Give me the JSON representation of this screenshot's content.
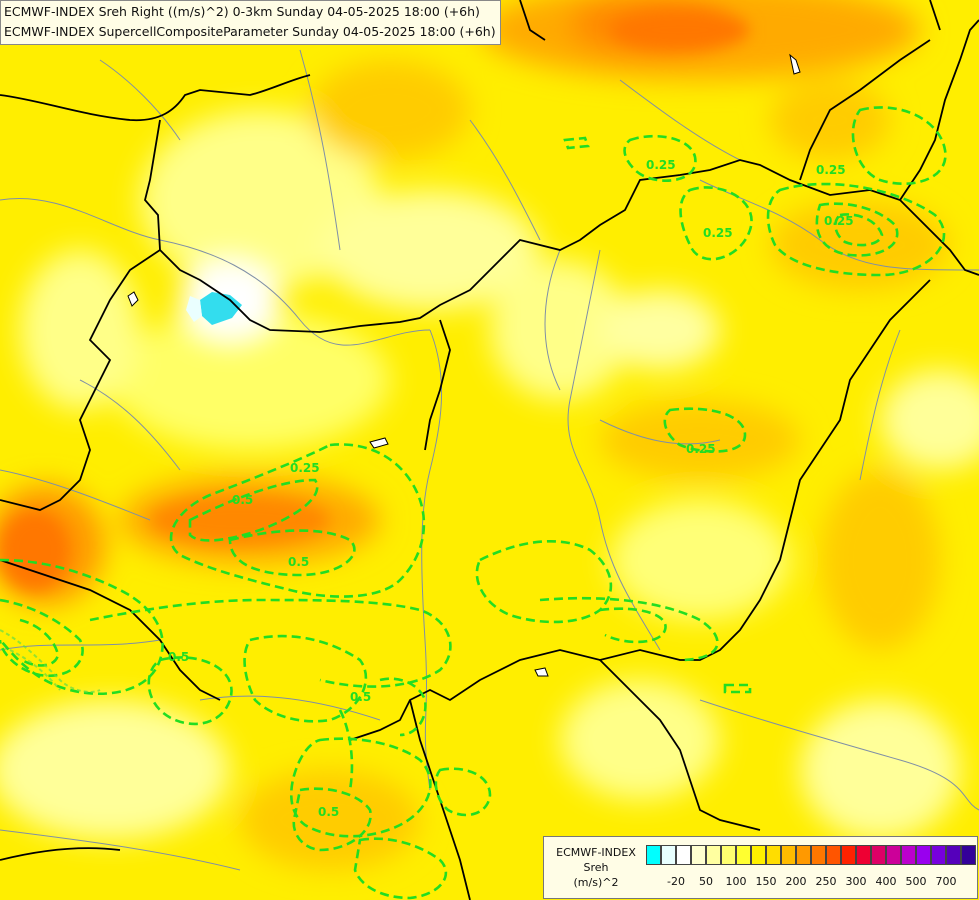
{
  "title": {
    "line1": "ECMWF-INDEX Sreh Right ((m/s)^2) 0-3km Sunday 04-05-2025 18:00 (+6h)",
    "line2": "ECMWF-INDEX SupercellCompositeParameter Sunday 04-05-2025 18:00 (+6h)"
  },
  "legend": {
    "line1": "ECMWF-INDEX",
    "line2": "Sreh",
    "line3": "(m/s)^2",
    "colors": [
      "#00ffff",
      "#e8ffff",
      "#ffffff",
      "#ffffd0",
      "#ffffa0",
      "#ffff70",
      "#ffff30",
      "#fff000",
      "#ffdd00",
      "#ffbb00",
      "#ff9900",
      "#ff7700",
      "#ff5500",
      "#ff2200",
      "#ee0033",
      "#dd0066",
      "#cc0099",
      "#bb00cc",
      "#9900ee",
      "#7700dd",
      "#5500bb",
      "#330099",
      "#110077"
    ],
    "ticks": [
      "-20",
      "50",
      "100",
      "150",
      "200",
      "250",
      "300",
      "400",
      "500",
      "700"
    ]
  },
  "contour_labels": [
    {
      "text": "0.25",
      "name": "contour-label-ne-1"
    },
    {
      "text": "0.25",
      "name": "contour-label-ne-2"
    },
    {
      "text": "0.25",
      "name": "contour-label-ne-3"
    },
    {
      "text": "0.25",
      "name": "contour-label-east"
    },
    {
      "text": "0.25",
      "name": "contour-label-central"
    },
    {
      "text": "0.5",
      "name": "contour-label-west-1"
    },
    {
      "text": "0.5",
      "name": "contour-label-west-2"
    },
    {
      "text": "0.5",
      "name": "contour-label-south-1"
    },
    {
      "text": "0.25",
      "name": "contour-label-south-2"
    },
    {
      "text": "0.5",
      "name": "contour-label-south-3"
    },
    {
      "text": "0.5",
      "name": "contour-label-south-4"
    }
  ],
  "colors": {
    "contour": "#22dd22",
    "border": "#000000",
    "river": "#7f8fa6"
  }
}
